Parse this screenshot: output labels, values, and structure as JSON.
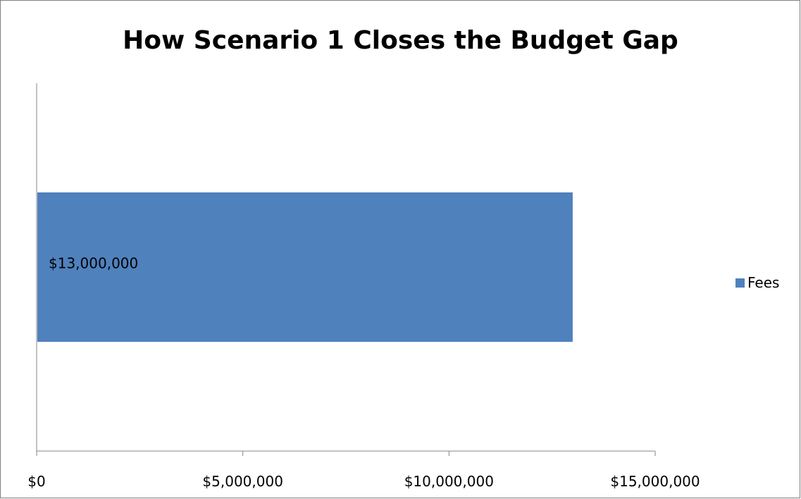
{
  "chart_data": {
    "type": "bar",
    "orientation": "horizontal",
    "title": "How Scenario 1 Closes the Budget Gap",
    "xlabel": "",
    "ylabel": "",
    "categories": [
      ""
    ],
    "series": [
      {
        "name": "Fees",
        "values": [
          13000000
        ],
        "data_labels": [
          "$13,000,000"
        ],
        "color": "#4f81bd"
      }
    ],
    "xlim": [
      0,
      15000000
    ],
    "x_ticks": [
      0,
      5000000,
      10000000,
      15000000
    ],
    "x_tick_labels": [
      "$0",
      "$5,000,000",
      "$10,000,000",
      "$15,000,000"
    ],
    "grid": false,
    "legend_position": "right"
  }
}
